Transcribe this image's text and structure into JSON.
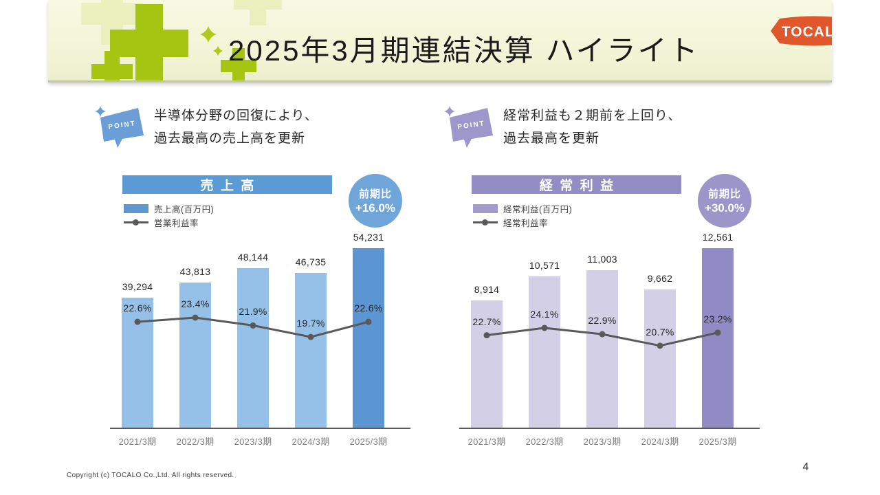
{
  "header": {
    "title": "2025年3月期連結決算 ハイライト",
    "logo_text": "TOCALO"
  },
  "points": [
    {
      "badge": "POINT",
      "line1": "半導体分野の回復により、",
      "line2": "過去最高の売上高を更新"
    },
    {
      "badge": "POINT",
      "line1": "経常利益も２期前を上回り、",
      "line2": "過去最高を更新"
    }
  ],
  "chart_data": [
    {
      "type": "bar",
      "title": "売上高",
      "badge": {
        "label": "前期比",
        "value": "+16.0%"
      },
      "legend": [
        {
          "kind": "bar",
          "label": "売上高(百万円)"
        },
        {
          "kind": "line",
          "label": "営業利益率"
        }
      ],
      "categories": [
        "2021/3期",
        "2022/3期",
        "2023/3期",
        "2024/3期",
        "2025/3期"
      ],
      "series": [
        {
          "name": "売上高(百万円)",
          "type": "bar",
          "values": [
            39294,
            43813,
            48144,
            46735,
            54231
          ],
          "labels": [
            "39,294",
            "43,813",
            "48,144",
            "46,735",
            "54,231"
          ]
        },
        {
          "name": "営業利益率",
          "type": "line",
          "values": [
            22.6,
            23.4,
            21.9,
            19.7,
            22.6
          ],
          "labels": [
            "22.6%",
            "23.4%",
            "21.9%",
            "19.7%",
            "22.6%"
          ]
        }
      ],
      "colors": {
        "header": "#5b9bd5",
        "badge": "#6fa5d9",
        "bar": "#95c1e8",
        "bar_highlight": "#5b96d2",
        "legend_swatch": "#5e97cf",
        "line": "#595959"
      }
    },
    {
      "type": "bar",
      "title": "経常利益",
      "badge": {
        "label": "前期比",
        "value": "+30.0%"
      },
      "legend": [
        {
          "kind": "bar",
          "label": "経常利益(百万円)"
        },
        {
          "kind": "line",
          "label": "経常利益率"
        }
      ],
      "categories": [
        "2021/3期",
        "2022/3期",
        "2023/3期",
        "2024/3期",
        "2025/3期"
      ],
      "series": [
        {
          "name": "経常利益(百万円)",
          "type": "bar",
          "values": [
            8914,
            10571,
            11003,
            9662,
            12561
          ],
          "labels": [
            "8,914",
            "10,571",
            "11,003",
            "9,662",
            "12,561"
          ]
        },
        {
          "name": "経常利益率",
          "type": "line",
          "values": [
            22.7,
            24.1,
            22.9,
            20.7,
            23.2
          ],
          "labels": [
            "22.7%",
            "24.1%",
            "22.9%",
            "20.7%",
            "23.2%"
          ]
        }
      ],
      "colors": {
        "header": "#938dc5",
        "badge": "#9b95c9",
        "bar": "#d2cfe6",
        "bar_highlight": "#918bc5",
        "legend_swatch": "#a29bce",
        "line": "#595959"
      }
    }
  ],
  "footer": {
    "copyright": "Copyright (c) TOCALO Co.,Ltd. All rights reserved.",
    "page_number": "4"
  }
}
